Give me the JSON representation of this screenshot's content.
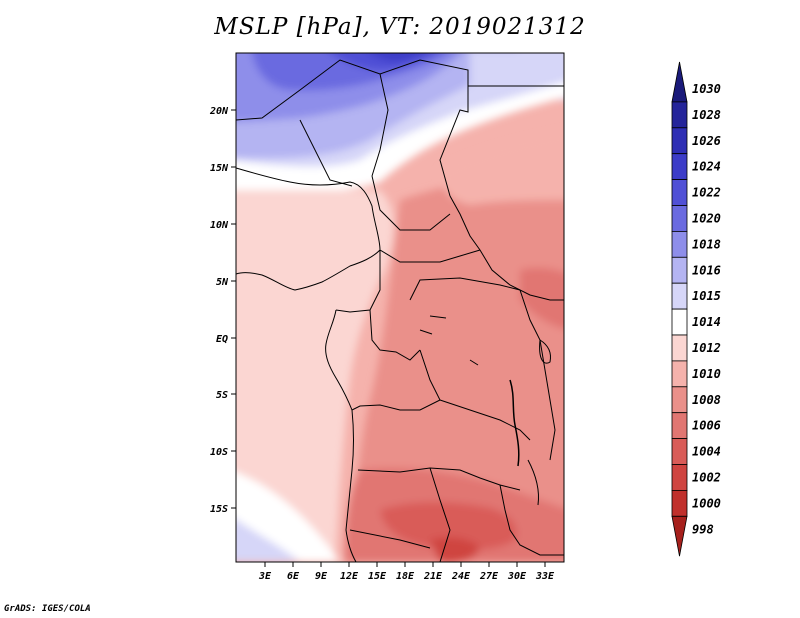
{
  "title": "MSLP [hPa], VT: 2019021312",
  "credit": "GrADS: IGES/COLA",
  "map": {
    "variable": "MSLP",
    "units": "hPa",
    "valid_time": "2019021312",
    "lat_labels": [
      "20N",
      "15N",
      "10N",
      "5N",
      "EQ",
      "5S",
      "10S",
      "15S"
    ],
    "lon_labels": [
      "3E",
      "6E",
      "9E",
      "12E",
      "15E",
      "18E",
      "21E",
      "24E",
      "27E",
      "30E",
      "33E"
    ]
  },
  "colorbar": {
    "levels": [
      {
        "label": "1030",
        "color": "#1a1a7a"
      },
      {
        "label": "1028",
        "color": "#24249a"
      },
      {
        "label": "1026",
        "color": "#2e2eb4"
      },
      {
        "label": "1024",
        "color": "#3c3cc8"
      },
      {
        "label": "1022",
        "color": "#5050d6"
      },
      {
        "label": "1020",
        "color": "#6a6ae0"
      },
      {
        "label": "1018",
        "color": "#8e8eea"
      },
      {
        "label": "1016",
        "color": "#b4b4f2"
      },
      {
        "label": "1015",
        "color": "#d6d6f8"
      },
      {
        "label": "1014",
        "color": "#ffffff"
      },
      {
        "label": "1012",
        "color": "#fbd6d2"
      },
      {
        "label": "1010",
        "color": "#f5b2ac"
      },
      {
        "label": "1008",
        "color": "#ea908a"
      },
      {
        "label": "1006",
        "color": "#e17672"
      },
      {
        "label": "1004",
        "color": "#d95c58"
      },
      {
        "label": "1002",
        "color": "#cf4440"
      },
      {
        "label": "1000",
        "color": "#c0302c"
      },
      {
        "label": "998",
        "color": "#a6201c"
      }
    ]
  }
}
